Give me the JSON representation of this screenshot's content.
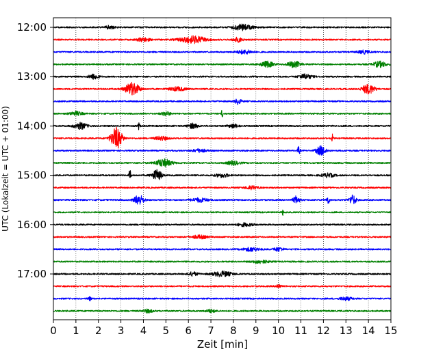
{
  "chart_data": {
    "type": "line",
    "title": "",
    "xlabel": "Zeit  [min]",
    "ylabel": "UTC (Lokalzeit = UTC + 01:00)",
    "xlim": [
      0,
      15
    ],
    "x_ticks": [
      0,
      1,
      2,
      3,
      4,
      5,
      6,
      7,
      8,
      9,
      10,
      11,
      12,
      13,
      14,
      15
    ],
    "x_tick_labels": [
      "0",
      "1",
      "2",
      "3",
      "4",
      "5",
      "6",
      "7",
      "8",
      "9",
      "10",
      "11",
      "12",
      "13",
      "14",
      "15"
    ],
    "y_ticks": [
      "12:00",
      "13:00",
      "14:00",
      "15:00",
      "16:00",
      "17:00"
    ],
    "grid": "vertical dotted at each minute",
    "row_colors": [
      "#000000",
      "#ff0000",
      "#0000ff",
      "#008000"
    ],
    "series": [
      {
        "start": "12:00",
        "color": "#000000",
        "bursts": [
          {
            "t": 8.4,
            "amp": 0.45,
            "w": 0.6
          },
          {
            "t": 2.5,
            "amp": 0.25,
            "w": 0.3
          }
        ]
      },
      {
        "start": "12:15",
        "color": "#ff0000",
        "bursts": [
          {
            "t": 6.2,
            "amp": 0.55,
            "w": 0.8
          },
          {
            "t": 4.0,
            "amp": 0.3,
            "w": 0.4
          },
          {
            "t": 8.2,
            "amp": 0.35,
            "w": 0.3
          }
        ]
      },
      {
        "start": "12:30",
        "color": "#0000ff",
        "bursts": [
          {
            "t": 8.5,
            "amp": 0.3,
            "w": 0.5
          },
          {
            "t": 13.8,
            "amp": 0.25,
            "w": 0.4
          }
        ]
      },
      {
        "start": "12:45",
        "color": "#008000",
        "bursts": [
          {
            "t": 9.5,
            "amp": 0.45,
            "w": 0.4
          },
          {
            "t": 10.7,
            "amp": 0.5,
            "w": 0.4
          },
          {
            "t": 14.5,
            "amp": 0.45,
            "w": 0.4
          }
        ]
      },
      {
        "start": "13:00",
        "color": "#000000",
        "bursts": [
          {
            "t": 1.8,
            "amp": 0.4,
            "w": 0.3
          },
          {
            "t": 11.2,
            "amp": 0.4,
            "w": 0.4
          }
        ]
      },
      {
        "start": "13:15",
        "color": "#ff0000",
        "bursts": [
          {
            "t": 3.5,
            "amp": 1.0,
            "w": 0.45
          },
          {
            "t": 14.0,
            "amp": 0.75,
            "w": 0.4
          },
          {
            "t": 5.5,
            "amp": 0.3,
            "w": 0.5
          }
        ]
      },
      {
        "start": "13:30",
        "color": "#0000ff",
        "bursts": [
          {
            "t": 8.2,
            "amp": 0.45,
            "w": 0.2
          }
        ]
      },
      {
        "start": "13:45",
        "color": "#008000",
        "bursts": [
          {
            "t": 7.5,
            "amp": 0.75,
            "w": 0.04
          },
          {
            "t": 1.0,
            "amp": 0.3,
            "w": 0.4
          },
          {
            "t": 5.0,
            "amp": 0.3,
            "w": 0.3
          }
        ]
      },
      {
        "start": "14:00",
        "color": "#000000",
        "bursts": [
          {
            "t": 1.2,
            "amp": 0.5,
            "w": 0.4
          },
          {
            "t": 3.8,
            "amp": 0.55,
            "w": 0.06
          },
          {
            "t": 6.2,
            "amp": 0.4,
            "w": 0.3
          },
          {
            "t": 8.0,
            "amp": 0.3,
            "w": 0.3
          }
        ]
      },
      {
        "start": "14:15",
        "color": "#ff0000",
        "bursts": [
          {
            "t": 2.8,
            "amp": 1.7,
            "w": 0.35
          },
          {
            "t": 12.4,
            "amp": 0.6,
            "w": 0.05
          },
          {
            "t": 4.8,
            "amp": 0.3,
            "w": 0.4
          }
        ]
      },
      {
        "start": "14:30",
        "color": "#0000ff",
        "bursts": [
          {
            "t": 11.9,
            "amp": 0.75,
            "w": 0.3
          },
          {
            "t": 10.9,
            "amp": 0.6,
            "w": 0.08
          },
          {
            "t": 6.5,
            "amp": 0.25,
            "w": 0.4
          }
        ]
      },
      {
        "start": "14:45",
        "color": "#008000",
        "bursts": [
          {
            "t": 4.9,
            "amp": 0.6,
            "w": 0.5
          },
          {
            "t": 8.0,
            "amp": 0.3,
            "w": 0.4
          }
        ]
      },
      {
        "start": "15:00",
        "color": "#000000",
        "bursts": [
          {
            "t": 3.4,
            "amp": 1.0,
            "w": 0.06
          },
          {
            "t": 4.6,
            "amp": 0.85,
            "w": 0.3
          },
          {
            "t": 7.5,
            "amp": 0.3,
            "w": 0.4
          },
          {
            "t": 12.2,
            "amp": 0.3,
            "w": 0.4
          }
        ]
      },
      {
        "start": "15:15",
        "color": "#ff0000",
        "bursts": [
          {
            "t": 8.8,
            "amp": 0.25,
            "w": 0.4
          }
        ]
      },
      {
        "start": "15:30",
        "color": "#0000ff",
        "bursts": [
          {
            "t": 3.8,
            "amp": 0.8,
            "w": 0.3
          },
          {
            "t": 13.3,
            "amp": 0.8,
            "w": 0.2
          },
          {
            "t": 12.2,
            "amp": 0.6,
            "w": 0.1
          },
          {
            "t": 10.8,
            "amp": 0.6,
            "w": 0.2
          },
          {
            "t": 6.5,
            "amp": 0.3,
            "w": 0.5
          }
        ]
      },
      {
        "start": "15:45",
        "color": "#008000",
        "bursts": [
          {
            "t": 10.2,
            "amp": 0.55,
            "w": 0.04
          }
        ]
      },
      {
        "start": "16:00",
        "color": "#000000",
        "bursts": [
          {
            "t": 8.5,
            "amp": 0.25,
            "w": 0.5
          }
        ]
      },
      {
        "start": "16:15",
        "color": "#ff0000",
        "bursts": [
          {
            "t": 6.5,
            "amp": 0.25,
            "w": 0.5
          }
        ]
      },
      {
        "start": "16:30",
        "color": "#0000ff",
        "bursts": [
          {
            "t": 8.8,
            "amp": 0.3,
            "w": 0.5
          },
          {
            "t": 10.0,
            "amp": 0.3,
            "w": 0.3
          }
        ]
      },
      {
        "start": "16:45",
        "color": "#008000",
        "bursts": [
          {
            "t": 9.2,
            "amp": 0.25,
            "w": 0.5
          }
        ]
      },
      {
        "start": "17:00",
        "color": "#000000",
        "bursts": [
          {
            "t": 7.5,
            "amp": 0.4,
            "w": 0.6
          },
          {
            "t": 6.2,
            "amp": 0.3,
            "w": 0.3
          }
        ]
      },
      {
        "start": "17:15",
        "color": "#ff0000",
        "bursts": [
          {
            "t": 10.0,
            "amp": 0.35,
            "w": 0.15
          }
        ]
      },
      {
        "start": "17:30",
        "color": "#0000ff",
        "bursts": [
          {
            "t": 1.6,
            "amp": 0.3,
            "w": 0.1
          },
          {
            "t": 13.0,
            "amp": 0.25,
            "w": 0.4
          }
        ]
      },
      {
        "start": "17:45",
        "color": "#008000",
        "bursts": [
          {
            "t": 4.2,
            "amp": 0.25,
            "w": 0.3
          },
          {
            "t": 7.0,
            "amp": 0.25,
            "w": 0.3
          }
        ]
      }
    ]
  }
}
